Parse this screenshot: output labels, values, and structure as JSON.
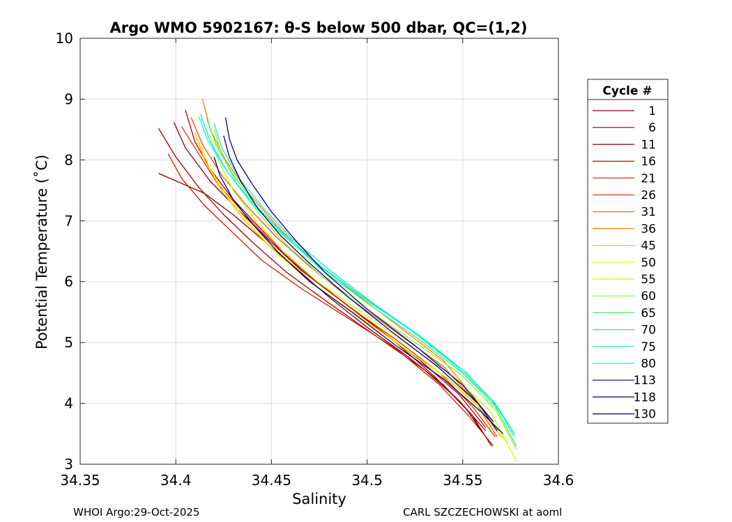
{
  "chart_data": {
    "type": "line",
    "title": "Argo WMO 5902167: θ-S below 500 dbar,  QC=(1,2)",
    "xlabel": "Salinity",
    "ylabel": "Potential Temperature (˚C)",
    "xlim": [
      34.35,
      34.6
    ],
    "ylim": [
      3,
      10
    ],
    "xticks": [
      34.35,
      34.4,
      34.45,
      34.5,
      34.55,
      34.6
    ],
    "xtick_labels": [
      "34.35",
      "34.4",
      "34.45",
      "34.5",
      "34.55",
      "34.6"
    ],
    "yticks": [
      3,
      4,
      5,
      6,
      7,
      8,
      9,
      10
    ],
    "ytick_labels": [
      "3",
      "4",
      "5",
      "6",
      "7",
      "8",
      "9",
      "10"
    ],
    "grid": true,
    "legend": {
      "title": "Cycle #",
      "placement": "right",
      "entries": [
        {
          "label": "1",
          "color": "#800000"
        },
        {
          "label": "6",
          "color": "#8f0000"
        },
        {
          "label": "11",
          "color": "#a30000"
        },
        {
          "label": "16",
          "color": "#b80000"
        },
        {
          "label": "21",
          "color": "#cc1a00"
        },
        {
          "label": "26",
          "color": "#e03300"
        },
        {
          "label": "31",
          "color": "#f05000"
        },
        {
          "label": "36",
          "color": "#ff8000"
        },
        {
          "label": "45",
          "color": "#ffc000"
        },
        {
          "label": "50",
          "color": "#f2f200"
        },
        {
          "label": "55",
          "color": "#c0ff00"
        },
        {
          "label": "60",
          "color": "#80ff20"
        },
        {
          "label": "65",
          "color": "#40f060"
        },
        {
          "label": "70",
          "color": "#30e0a0"
        },
        {
          "label": "75",
          "color": "#20e0c8"
        },
        {
          "label": "80",
          "color": "#00ffff"
        },
        {
          "label": "113",
          "color": "#00008b"
        },
        {
          "label": "118",
          "color": "#000090"
        },
        {
          "label": "130",
          "color": "#000070"
        }
      ]
    },
    "series": [
      {
        "name": "1",
        "color": "#800000",
        "points": [
          [
            34.391,
            7.78
          ],
          [
            34.415,
            7.45
          ],
          [
            34.43,
            7.1
          ],
          [
            34.445,
            6.7
          ],
          [
            34.46,
            6.3
          ],
          [
            34.48,
            5.75
          ],
          [
            34.5,
            5.25
          ],
          [
            34.52,
            4.8
          ],
          [
            34.54,
            4.3
          ],
          [
            34.555,
            3.8
          ],
          [
            34.565,
            3.3
          ]
        ]
      },
      {
        "name": "6",
        "color": "#8f0000",
        "points": [
          [
            34.399,
            8.62
          ],
          [
            34.405,
            8.2
          ],
          [
            34.418,
            7.65
          ],
          [
            34.432,
            7.2
          ],
          [
            34.448,
            6.7
          ],
          [
            34.465,
            6.2
          ],
          [
            34.49,
            5.6
          ],
          [
            34.515,
            5.0
          ],
          [
            34.535,
            4.45
          ],
          [
            34.552,
            3.9
          ],
          [
            34.562,
            3.45
          ]
        ]
      },
      {
        "name": "11",
        "color": "#a30000",
        "points": [
          [
            34.391,
            8.52
          ],
          [
            34.4,
            8.05
          ],
          [
            34.412,
            7.55
          ],
          [
            34.425,
            7.1
          ],
          [
            34.44,
            6.65
          ],
          [
            34.458,
            6.15
          ],
          [
            34.48,
            5.65
          ],
          [
            34.505,
            5.1
          ],
          [
            34.53,
            4.55
          ],
          [
            34.548,
            4.05
          ],
          [
            34.562,
            3.55
          ]
        ]
      },
      {
        "name": "16",
        "color": "#b80000",
        "points": [
          [
            34.405,
            8.82
          ],
          [
            34.41,
            8.3
          ],
          [
            34.418,
            7.85
          ],
          [
            34.43,
            7.35
          ],
          [
            34.445,
            6.85
          ],
          [
            34.46,
            6.35
          ],
          [
            34.482,
            5.8
          ],
          [
            34.505,
            5.25
          ],
          [
            34.528,
            4.7
          ],
          [
            34.548,
            4.15
          ],
          [
            34.562,
            3.6
          ]
        ]
      },
      {
        "name": "21",
        "color": "#cc1a00",
        "points": [
          [
            34.396,
            8.1
          ],
          [
            34.403,
            7.7
          ],
          [
            34.415,
            7.25
          ],
          [
            34.43,
            6.8
          ],
          [
            34.445,
            6.35
          ],
          [
            34.465,
            5.9
          ],
          [
            34.49,
            5.4
          ],
          [
            34.515,
            4.9
          ],
          [
            34.538,
            4.3
          ],
          [
            34.553,
            3.8
          ],
          [
            34.566,
            3.3
          ]
        ]
      },
      {
        "name": "26",
        "color": "#e03300",
        "points": [
          [
            34.403,
            8.55
          ],
          [
            34.412,
            8.1
          ],
          [
            34.422,
            7.6
          ],
          [
            34.435,
            7.15
          ],
          [
            34.45,
            6.65
          ],
          [
            34.468,
            6.15
          ],
          [
            34.49,
            5.6
          ],
          [
            34.515,
            5.05
          ],
          [
            34.538,
            4.5
          ],
          [
            34.555,
            3.95
          ],
          [
            34.567,
            3.45
          ]
        ]
      },
      {
        "name": "31",
        "color": "#f05000",
        "points": [
          [
            34.408,
            8.7
          ],
          [
            34.414,
            8.25
          ],
          [
            34.424,
            7.75
          ],
          [
            34.437,
            7.25
          ],
          [
            34.452,
            6.75
          ],
          [
            34.47,
            6.25
          ],
          [
            34.492,
            5.7
          ],
          [
            34.516,
            5.15
          ],
          [
            34.54,
            4.6
          ],
          [
            34.556,
            4.05
          ],
          [
            34.568,
            3.45
          ]
        ]
      },
      {
        "name": "36",
        "color": "#ff8000",
        "points": [
          [
            34.414,
            9.0
          ],
          [
            34.418,
            8.5
          ],
          [
            34.426,
            8.0
          ],
          [
            34.438,
            7.45
          ],
          [
            34.452,
            6.95
          ],
          [
            34.468,
            6.45
          ],
          [
            34.49,
            5.9
          ],
          [
            34.515,
            5.3
          ],
          [
            34.54,
            4.7
          ],
          [
            34.556,
            4.1
          ],
          [
            34.568,
            3.55
          ]
        ]
      },
      {
        "name": "45",
        "color": "#ffc000",
        "points": [
          [
            34.41,
            8.45
          ],
          [
            34.415,
            8.0
          ],
          [
            34.424,
            7.5
          ],
          [
            34.436,
            7.0
          ],
          [
            34.45,
            6.55
          ],
          [
            34.468,
            6.05
          ],
          [
            34.49,
            5.55
          ],
          [
            34.515,
            5.0
          ],
          [
            34.54,
            4.45
          ],
          [
            34.558,
            3.95
          ],
          [
            34.57,
            3.45
          ]
        ]
      },
      {
        "name": "50",
        "color": "#f2f200",
        "points": [
          [
            34.412,
            8.3
          ],
          [
            34.418,
            7.85
          ],
          [
            34.428,
            7.35
          ],
          [
            34.44,
            6.9
          ],
          [
            34.455,
            6.4
          ],
          [
            34.472,
            5.95
          ],
          [
            34.495,
            5.45
          ],
          [
            34.52,
            4.9
          ],
          [
            34.545,
            4.35
          ],
          [
            34.562,
            3.85
          ],
          [
            34.573,
            3.35
          ]
        ]
      },
      {
        "name": "55",
        "color": "#c0ff00",
        "points": [
          [
            34.418,
            8.4
          ],
          [
            34.422,
            8.0
          ],
          [
            34.43,
            7.5
          ],
          [
            34.442,
            7.0
          ],
          [
            34.456,
            6.5
          ],
          [
            34.474,
            6.0
          ],
          [
            34.497,
            5.5
          ],
          [
            34.522,
            4.95
          ],
          [
            34.547,
            4.4
          ],
          [
            34.565,
            3.85
          ],
          [
            34.578,
            3.05
          ]
        ]
      },
      {
        "name": "60",
        "color": "#80ff20",
        "points": [
          [
            34.42,
            8.5
          ],
          [
            34.424,
            8.1
          ],
          [
            34.432,
            7.6
          ],
          [
            34.444,
            7.1
          ],
          [
            34.458,
            6.6
          ],
          [
            34.476,
            6.1
          ],
          [
            34.5,
            5.55
          ],
          [
            34.525,
            5.0
          ],
          [
            34.55,
            4.45
          ],
          [
            34.567,
            3.9
          ],
          [
            34.578,
            3.25
          ]
        ]
      },
      {
        "name": "65",
        "color": "#40f060",
        "points": [
          [
            34.416,
            8.7
          ],
          [
            34.421,
            8.25
          ],
          [
            34.43,
            7.75
          ],
          [
            34.442,
            7.25
          ],
          [
            34.457,
            6.75
          ],
          [
            34.476,
            6.2
          ],
          [
            34.5,
            5.65
          ],
          [
            34.525,
            5.1
          ],
          [
            34.55,
            4.5
          ],
          [
            34.567,
            3.95
          ],
          [
            34.578,
            3.3
          ]
        ]
      },
      {
        "name": "70",
        "color": "#30e0a0",
        "points": [
          [
            34.413,
            8.75
          ],
          [
            34.418,
            8.3
          ],
          [
            34.427,
            7.8
          ],
          [
            34.44,
            7.3
          ],
          [
            34.456,
            6.8
          ],
          [
            34.476,
            6.25
          ],
          [
            34.5,
            5.7
          ],
          [
            34.525,
            5.15
          ],
          [
            34.55,
            4.55
          ],
          [
            34.567,
            4.0
          ],
          [
            34.577,
            3.45
          ]
        ]
      },
      {
        "name": "75",
        "color": "#20e0c8",
        "points": [
          [
            34.42,
            8.6
          ],
          [
            34.424,
            8.2
          ],
          [
            34.433,
            7.7
          ],
          [
            34.446,
            7.2
          ],
          [
            34.461,
            6.7
          ],
          [
            34.48,
            6.2
          ],
          [
            34.503,
            5.65
          ],
          [
            34.528,
            5.1
          ],
          [
            34.552,
            4.5
          ],
          [
            34.568,
            3.95
          ],
          [
            34.577,
            3.5
          ]
        ]
      },
      {
        "name": "80",
        "color": "#00ffff",
        "points": [
          [
            34.412,
            8.72
          ],
          [
            34.417,
            8.3
          ],
          [
            34.426,
            7.85
          ],
          [
            34.438,
            7.35
          ],
          [
            34.453,
            6.85
          ],
          [
            34.473,
            6.3
          ],
          [
            34.497,
            5.75
          ],
          [
            34.523,
            5.2
          ],
          [
            34.547,
            4.6
          ],
          [
            34.565,
            4.05
          ],
          [
            34.575,
            3.6
          ]
        ]
      },
      {
        "name": "113",
        "color": "#00008b",
        "points": [
          [
            34.426,
            8.7
          ],
          [
            34.428,
            8.35
          ],
          [
            34.432,
            8.0
          ],
          [
            34.44,
            7.6
          ],
          [
            34.45,
            7.15
          ],
          [
            34.462,
            6.7
          ],
          [
            34.478,
            6.15
          ],
          [
            34.5,
            5.55
          ],
          [
            34.525,
            4.95
          ],
          [
            34.55,
            4.3
          ],
          [
            34.566,
            3.7
          ]
        ]
      },
      {
        "name": "118",
        "color": "#000090",
        "points": [
          [
            34.425,
            8.4
          ],
          [
            34.428,
            8.05
          ],
          [
            34.434,
            7.65
          ],
          [
            34.443,
            7.2
          ],
          [
            34.455,
            6.75
          ],
          [
            34.47,
            6.3
          ],
          [
            34.49,
            5.75
          ],
          [
            34.512,
            5.2
          ],
          [
            34.537,
            4.6
          ],
          [
            34.558,
            4.0
          ],
          [
            34.568,
            3.55
          ]
        ]
      },
      {
        "name": "130",
        "color": "#000070",
        "points": [
          [
            34.42,
            8.05
          ],
          [
            34.423,
            7.75
          ],
          [
            34.43,
            7.35
          ],
          [
            34.44,
            6.95
          ],
          [
            34.453,
            6.5
          ],
          [
            34.47,
            6.0
          ],
          [
            34.492,
            5.5
          ],
          [
            34.515,
            4.95
          ],
          [
            34.54,
            4.4
          ],
          [
            34.56,
            3.85
          ],
          [
            34.571,
            3.5
          ]
        ]
      }
    ]
  },
  "footer": {
    "left": "WHOI Argo:29-Oct-2025",
    "right": "CARL SZCZECHOWSKI at aoml"
  }
}
